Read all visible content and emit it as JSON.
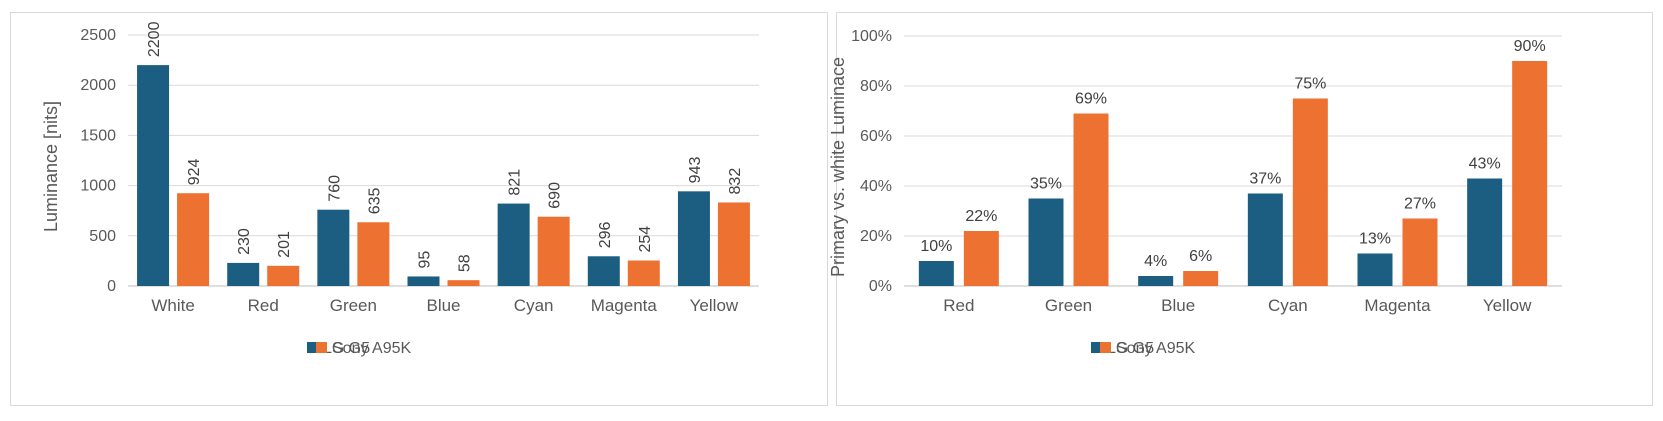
{
  "chart_data": [
    {
      "type": "bar",
      "title": "",
      "xlabel": "",
      "ylabel": "Luminance [nits]",
      "ylim": [
        0,
        2500
      ],
      "yticks": [
        0,
        500,
        1000,
        1500,
        2000,
        2500
      ],
      "ytick_labels": [
        "0",
        "500",
        "1000",
        "1500",
        "2000",
        "2500"
      ],
      "grid": true,
      "legend": "bottom",
      "categories": [
        "White",
        "Red",
        "Green",
        "Blue",
        "Cyan",
        "Magenta",
        "Yellow"
      ],
      "data_label_rotation": "vertical",
      "series": [
        {
          "name": "LG G5",
          "color": "#1b5e82",
          "values": [
            2200,
            230,
            760,
            95,
            821,
            296,
            943
          ],
          "labels": [
            "2200",
            "230",
            "760",
            "95",
            "821",
            "296",
            "943"
          ]
        },
        {
          "name": "Sony A95K",
          "color": "#ed7131",
          "values": [
            924,
            201,
            635,
            58,
            690,
            254,
            832
          ],
          "labels": [
            "924",
            "201",
            "635",
            "58",
            "690",
            "254",
            "832"
          ]
        }
      ]
    },
    {
      "type": "bar",
      "title": "",
      "xlabel": "",
      "ylabel": "Primary vs. white Luminace",
      "ylim": [
        0,
        100
      ],
      "yticks": [
        0,
        20,
        40,
        60,
        80,
        100
      ],
      "ytick_labels": [
        "0%",
        "20%",
        "40%",
        "60%",
        "80%",
        "100%"
      ],
      "grid": true,
      "legend": "bottom",
      "categories": [
        "Red",
        "Green",
        "Blue",
        "Cyan",
        "Magenta",
        "Yellow"
      ],
      "data_label_rotation": "horizontal",
      "series": [
        {
          "name": "LG G5",
          "color": "#1b5e82",
          "values": [
            10,
            35,
            4,
            37,
            13,
            43
          ],
          "labels": [
            "10%",
            "35%",
            "4%",
            "37%",
            "13%",
            "43%"
          ]
        },
        {
          "name": "Sony A95K",
          "color": "#ed7131",
          "values": [
            22,
            69,
            6,
            75,
            27,
            90
          ],
          "labels": [
            "22%",
            "69%",
            "6%",
            "75%",
            "27%",
            "90%"
          ]
        }
      ]
    }
  ]
}
